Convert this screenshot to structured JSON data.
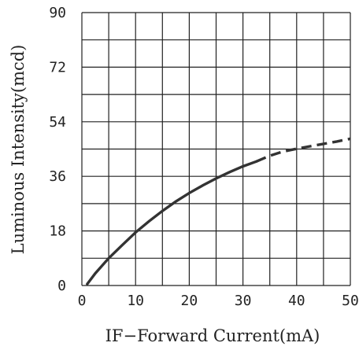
{
  "chart_data": {
    "type": "line",
    "xlabel": "IF−Forward Current(mA)",
    "ylabel": "Luminous Intensity(mcd)",
    "xlim": [
      0,
      50
    ],
    "ylim": [
      0,
      90
    ],
    "xticks": [
      "0",
      "10",
      "20",
      "30",
      "40",
      "50"
    ],
    "yticks": [
      "0",
      "18",
      "36",
      "54",
      "72",
      "90"
    ],
    "grid": true,
    "x_minor_step": 5,
    "y_minor_step": 9,
    "series": [
      {
        "style": "solid",
        "x": [
          1,
          2.5,
          5,
          7.5,
          10,
          12.5,
          15,
          17.5,
          20,
          22.5,
          25,
          27.5,
          30,
          32.5
        ],
        "y": [
          0.5,
          4,
          9,
          13.3,
          17.5,
          21.2,
          24.6,
          27.7,
          30.5,
          33,
          35.3,
          37.4,
          39.3,
          40.9
        ]
      },
      {
        "style": "dashed",
        "x": [
          32.5,
          35,
          37.5,
          40,
          42.5,
          45,
          47.5,
          50
        ],
        "y": [
          40.9,
          42.8,
          44.2,
          45.1,
          45.9,
          46.7,
          47.5,
          48.4
        ]
      }
    ]
  },
  "colors": {
    "line": "#333333",
    "grid": "#222222",
    "background": "#ffffff"
  }
}
